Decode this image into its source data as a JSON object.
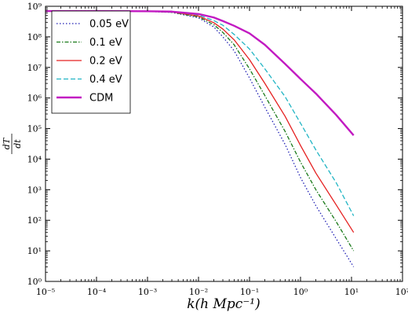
{
  "chart_data": {
    "type": "line",
    "xscale": "log",
    "yscale": "log",
    "xlim": [
      1e-05,
      100
    ],
    "ylim": [
      1,
      1000000000
    ],
    "xlabel": "k(h Mpc⁻¹)",
    "ylabel_numerator": "dT",
    "ylabel_denominator": "dt",
    "grid": false,
    "legend_position": "top-left",
    "x_ticks": [
      {
        "label": "10⁻⁵",
        "value": 1e-05
      },
      {
        "label": "10⁻⁴",
        "value": 0.0001
      },
      {
        "label": "10⁻³",
        "value": 0.001
      },
      {
        "label": "10⁻²",
        "value": 0.01
      },
      {
        "label": "10⁻¹",
        "value": 0.1
      },
      {
        "label": "10⁰",
        "value": 1
      },
      {
        "label": "10¹",
        "value": 10
      },
      {
        "label": "10²",
        "value": 100
      }
    ],
    "y_ticks": [
      {
        "label": "10⁰",
        "value": 1
      },
      {
        "label": "10¹",
        "value": 10
      },
      {
        "label": "10²",
        "value": 100
      },
      {
        "label": "10³",
        "value": 1000
      },
      {
        "label": "10⁴",
        "value": 10000
      },
      {
        "label": "10⁵",
        "value": 100000
      },
      {
        "label": "10⁶",
        "value": 1000000
      },
      {
        "label": "10⁷",
        "value": 10000000
      },
      {
        "label": "10⁸",
        "value": 100000000
      },
      {
        "label": "10⁹",
        "value": 1000000000
      }
    ],
    "series": [
      {
        "name": "0.05 eV",
        "color": "#1f1fb4",
        "dash": "1.5,2.5",
        "width": 1.3,
        "x": [
          1e-05,
          0.0001,
          0.001,
          0.003,
          0.01,
          0.02,
          0.03,
          0.05,
          0.1,
          0.2,
          0.5,
          1,
          2,
          5,
          11
        ],
        "y": [
          700000000,
          700000000,
          680000000,
          630000000,
          420000000,
          210000000,
          100000000,
          35000000,
          4500000,
          500000,
          30000,
          2500,
          300,
          25,
          3
        ]
      },
      {
        "name": "0.1 eV",
        "color": "#1a7a1a",
        "dash": "5,2,1.5,2",
        "width": 1.3,
        "x": [
          1e-05,
          0.0001,
          0.001,
          0.003,
          0.01,
          0.02,
          0.03,
          0.05,
          0.1,
          0.2,
          0.5,
          1,
          2,
          5,
          11
        ],
        "y": [
          700000000,
          700000000,
          680000000,
          640000000,
          450000000,
          250000000,
          140000000,
          55000000,
          9000000,
          1200000,
          80000,
          8000,
          1000,
          90,
          10
        ]
      },
      {
        "name": "0.2 eV",
        "color": "#e52020",
        "dash": "",
        "width": 1.3,
        "x": [
          1e-05,
          0.0001,
          0.001,
          0.003,
          0.01,
          0.02,
          0.03,
          0.05,
          0.1,
          0.2,
          0.5,
          1,
          2,
          5,
          11
        ],
        "y": [
          700000000,
          700000000,
          690000000,
          650000000,
          480000000,
          290000000,
          180000000,
          80000000,
          18000000,
          3000000,
          250000,
          28000,
          3500,
          320,
          40
        ]
      },
      {
        "name": "0.4 eV",
        "color": "#22b5c4",
        "dash": "6,3",
        "width": 1.3,
        "x": [
          1e-05,
          0.0001,
          0.001,
          0.003,
          0.01,
          0.02,
          0.03,
          0.05,
          0.1,
          0.2,
          0.5,
          1,
          2,
          5,
          11
        ],
        "y": [
          700000000,
          700000000,
          690000000,
          660000000,
          520000000,
          340000000,
          240000000,
          120000000,
          40000000,
          9000000,
          1100000,
          150000,
          20000,
          1700,
          140
        ]
      },
      {
        "name": "CDM",
        "color": "#c21ac2",
        "dash": "",
        "width": 2.4,
        "x": [
          1e-05,
          0.0001,
          0.001,
          0.003,
          0.01,
          0.02,
          0.03,
          0.05,
          0.1,
          0.2,
          0.5,
          1,
          2,
          5,
          11
        ],
        "y": [
          700000000,
          700000000,
          690000000,
          670000000,
          560000000,
          430000000,
          330000000,
          230000000,
          130000000,
          55000000,
          13000000,
          4200000,
          1400000,
          280000,
          60000
        ]
      }
    ]
  }
}
